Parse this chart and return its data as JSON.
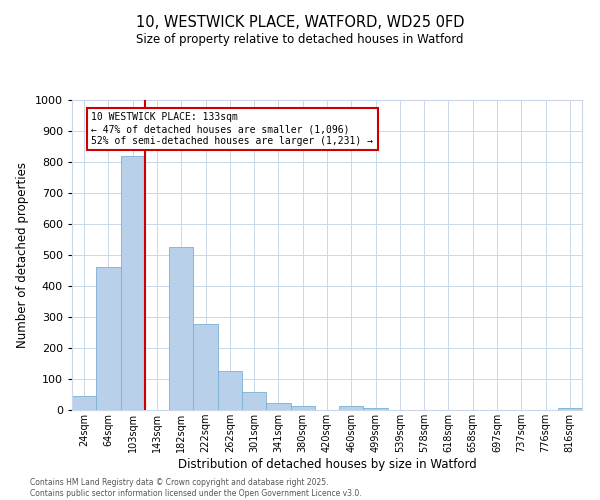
{
  "title_line1": "10, WESTWICK PLACE, WATFORD, WD25 0FD",
  "title_line2": "Size of property relative to detached houses in Watford",
  "xlabel": "Distribution of detached houses by size in Watford",
  "ylabel": "Number of detached properties",
  "bar_labels": [
    "24sqm",
    "64sqm",
    "103sqm",
    "143sqm",
    "182sqm",
    "222sqm",
    "262sqm",
    "301sqm",
    "341sqm",
    "380sqm",
    "420sqm",
    "460sqm",
    "499sqm",
    "539sqm",
    "578sqm",
    "618sqm",
    "658sqm",
    "697sqm",
    "737sqm",
    "776sqm",
    "816sqm"
  ],
  "bar_values": [
    46,
    462,
    818,
    0,
    527,
    277,
    127,
    59,
    22,
    12,
    0,
    12,
    5,
    0,
    0,
    0,
    0,
    0,
    0,
    0,
    5
  ],
  "bar_color": "#b8d0ea",
  "bar_edge_color": "#7aafd4",
  "vline_x_idx": 3,
  "vline_color": "#cc0000",
  "annotation_text": "10 WESTWICK PLACE: 133sqm\n← 47% of detached houses are smaller (1,096)\n52% of semi-detached houses are larger (1,231) →",
  "annotation_box_color": "#ffffff",
  "annotation_box_edge_color": "#cc0000",
  "ylim": [
    0,
    1000
  ],
  "yticks": [
    0,
    100,
    200,
    300,
    400,
    500,
    600,
    700,
    800,
    900,
    1000
  ],
  "bg_color": "#ffffff",
  "grid_color": "#c8d8e8",
  "footnote_line1": "Contains HM Land Registry data © Crown copyright and database right 2025.",
  "footnote_line2": "Contains public sector information licensed under the Open Government Licence v3.0."
}
